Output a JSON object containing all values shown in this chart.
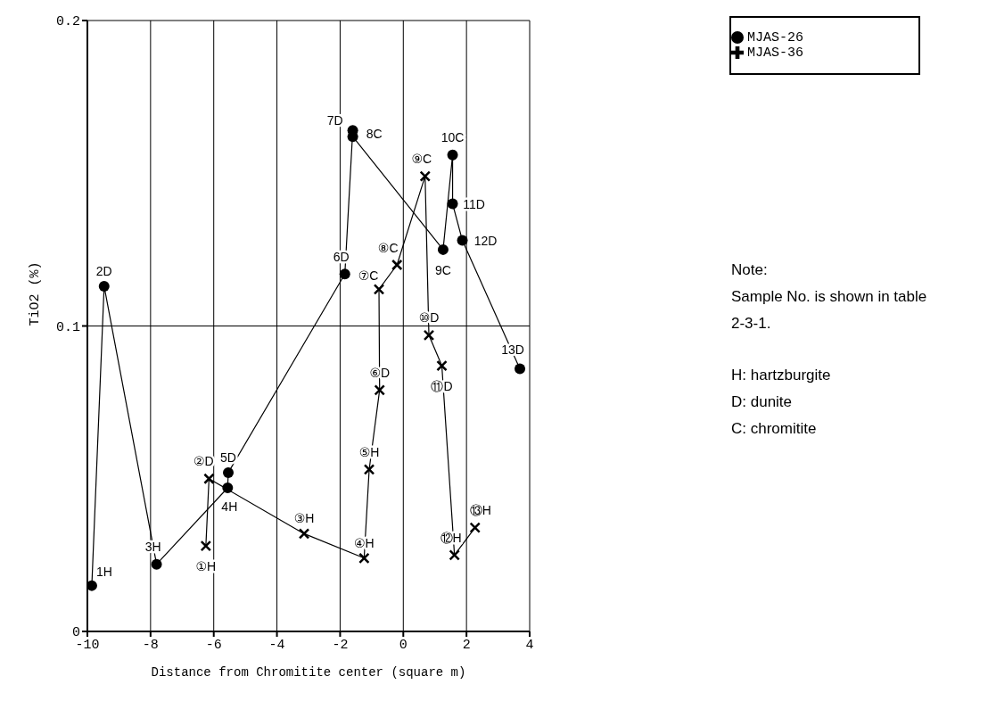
{
  "chart_data": {
    "type": "line",
    "xlabel": "Distance from Chromitite center (square m)",
    "ylabel": "TiO2 (%)",
    "xlim": [
      -10,
      4
    ],
    "xticks": [
      -10,
      -8,
      -6,
      -4,
      -2,
      0,
      2,
      4
    ],
    "ylim": [
      0,
      0.2
    ],
    "yticks": [
      0,
      0.1,
      0.2
    ],
    "grid": true,
    "legend": "top right",
    "line_style": "solid",
    "series": [
      {
        "name": "MJAS-26",
        "color": "#000000",
        "marker": "circle",
        "x": [
          -9.86,
          -9.47,
          -7.81,
          -5.56,
          -5.54,
          -1.85,
          -1.6,
          -1.6,
          1.26,
          1.56,
          1.56,
          1.87,
          3.69
        ],
        "values": [
          0.015,
          0.113,
          0.022,
          0.047,
          0.052,
          0.117,
          0.164,
          0.162,
          0.125,
          0.156,
          0.14,
          0.128,
          0.086
        ]
      },
      {
        "name": "MJAS-36",
        "color": "#000000",
        "marker": "cross",
        "x": [
          -6.25,
          -6.15,
          -3.14,
          -1.24,
          -1.08,
          -0.75,
          -0.77,
          -0.2,
          0.69,
          0.81,
          1.22,
          1.62,
          2.27
        ],
        "values": [
          0.028,
          0.05,
          0.032,
          0.024,
          0.053,
          0.079,
          0.112,
          0.12,
          0.149,
          0.097,
          0.087,
          0.025,
          0.034
        ]
      }
    ],
    "annotations": [
      {
        "text": "1H",
        "x": -9.86,
        "y": 0.015
      },
      {
        "text": "2D",
        "x": -9.47,
        "y": 0.113
      },
      {
        "text": "3H",
        "x": -7.81,
        "y": 0.022
      },
      {
        "text": "4H",
        "x": -5.56,
        "y": 0.047
      },
      {
        "text": "5D",
        "x": -5.54,
        "y": 0.052
      },
      {
        "text": "6D",
        "x": -1.85,
        "y": 0.117
      },
      {
        "text": "7D",
        "x": -1.6,
        "y": 0.164
      },
      {
        "text": "8C",
        "x": -1.6,
        "y": 0.162
      },
      {
        "text": "9C",
        "x": 1.26,
        "y": 0.125
      },
      {
        "text": "10C",
        "x": 1.56,
        "y": 0.156
      },
      {
        "text": "11D",
        "x": 1.56,
        "y": 0.14
      },
      {
        "text": "12D",
        "x": 1.87,
        "y": 0.128
      },
      {
        "text": "13D",
        "x": 3.69,
        "y": 0.086
      },
      {
        "text": "①H",
        "x": -6.25,
        "y": 0.028
      },
      {
        "text": "②D",
        "x": -6.15,
        "y": 0.05
      },
      {
        "text": "③H",
        "x": -3.14,
        "y": 0.032
      },
      {
        "text": "④H",
        "x": -1.24,
        "y": 0.024
      },
      {
        "text": "⑤H",
        "x": -1.08,
        "y": 0.053
      },
      {
        "text": "⑥D",
        "x": -0.75,
        "y": 0.079
      },
      {
        "text": "⑦C",
        "x": -0.77,
        "y": 0.112
      },
      {
        "text": "⑧C",
        "x": -0.2,
        "y": 0.12
      },
      {
        "text": "⑨C",
        "x": 0.69,
        "y": 0.149
      },
      {
        "text": "⑩D",
        "x": 0.81,
        "y": 0.097
      },
      {
        "text": "⑪D",
        "x": 1.22,
        "y": 0.087
      },
      {
        "text": "⑫H",
        "x": 1.62,
        "y": 0.025
      },
      {
        "text": "⑬H",
        "x": 2.27,
        "y": 0.034
      },
      "Note:",
      "Sample No. is shown in table 2-3-1.",
      "H: hartzburgite",
      "D: dunite",
      "C: chromitite"
    ]
  }
}
